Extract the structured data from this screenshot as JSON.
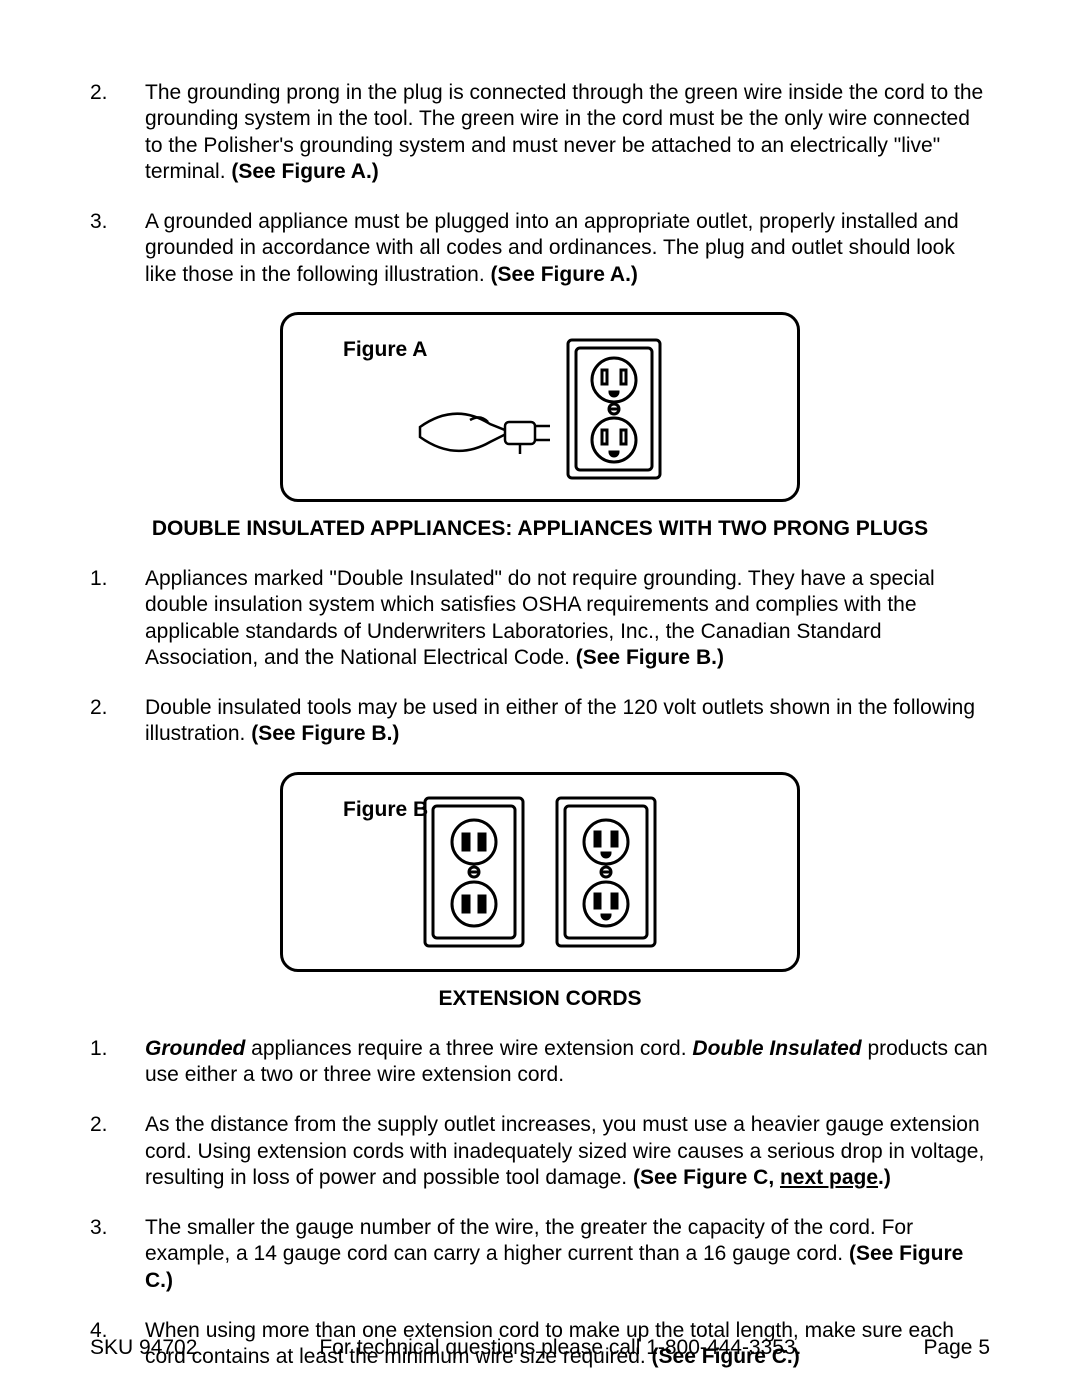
{
  "topItems": [
    {
      "num": "2.",
      "html": "The grounding prong in the plug is connected through the green wire inside the cord to the grounding system in the tool.  The green wire in the cord must be the only wire connected to the Polisher's grounding system and must never be attached to an electrically \"live\" terminal.  <b>(See Figure A.)</b>"
    },
    {
      "num": "3.",
      "html": "A grounded appliance must be plugged into an appropriate outlet, properly installed and grounded in accordance with all codes and ordinances.  The plug and outlet should look like those in the following illustration.  <b>(See Figure A.)</b>"
    }
  ],
  "figureA": {
    "label": "Figure A"
  },
  "heading1": "DOUBLE INSULATED APPLIANCES: APPLIANCES WITH TWO PRONG PLUGS",
  "doubleItems": [
    {
      "num": "1.",
      "html": "Appliances marked \"Double Insulated\" do not require grounding.  They have a special double insulation system which satisfies OSHA requirements and complies with the applicable standards of Underwriters Laboratories, Inc., the Canadian Standard Association, and the National Electrical Code.  <b>(See Figure B.)</b>"
    },
    {
      "num": "2.",
      "html": "Double insulated tools may be used in either of the 120 volt outlets shown in the following illustration.  <b>(See Figure B.)</b>"
    }
  ],
  "figureB": {
    "label": "Figure B"
  },
  "heading2": "EXTENSION CORDS",
  "extItems": [
    {
      "num": "1.",
      "html": "<b><i>Grounded</i></b> appliances require a three wire extension cord.  <b><i>Double Insulated</i></b> products can use either a two or three wire extension cord."
    },
    {
      "num": "2.",
      "html": "As the distance from the supply outlet increases, you must use a heavier gauge extension cord.  Using extension cords with inadequately sized wire causes a serious drop in voltage, resulting in loss of power and possible tool damage. <b>(See Figure C, <u>next page</u>.)</b>"
    },
    {
      "num": "3.",
      "html": "The smaller the gauge number of the wire, the greater the capacity of the cord.  For example, a 14 gauge cord can carry a higher current than a 16 gauge cord.  <b>(See Figure C.)</b>"
    },
    {
      "num": "4.",
      "html": "When using more than one extension cord to make up the total length, make sure each cord contains at least the minimum wire size required. <b>(See Figure C.)</b>"
    }
  ],
  "footer": {
    "left": "SKU 94702",
    "center": "For technical questions please call 1-800-444-3353.",
    "right": "Page 5"
  },
  "colors": {
    "stroke": "#000000",
    "fill": "#ffffff"
  }
}
